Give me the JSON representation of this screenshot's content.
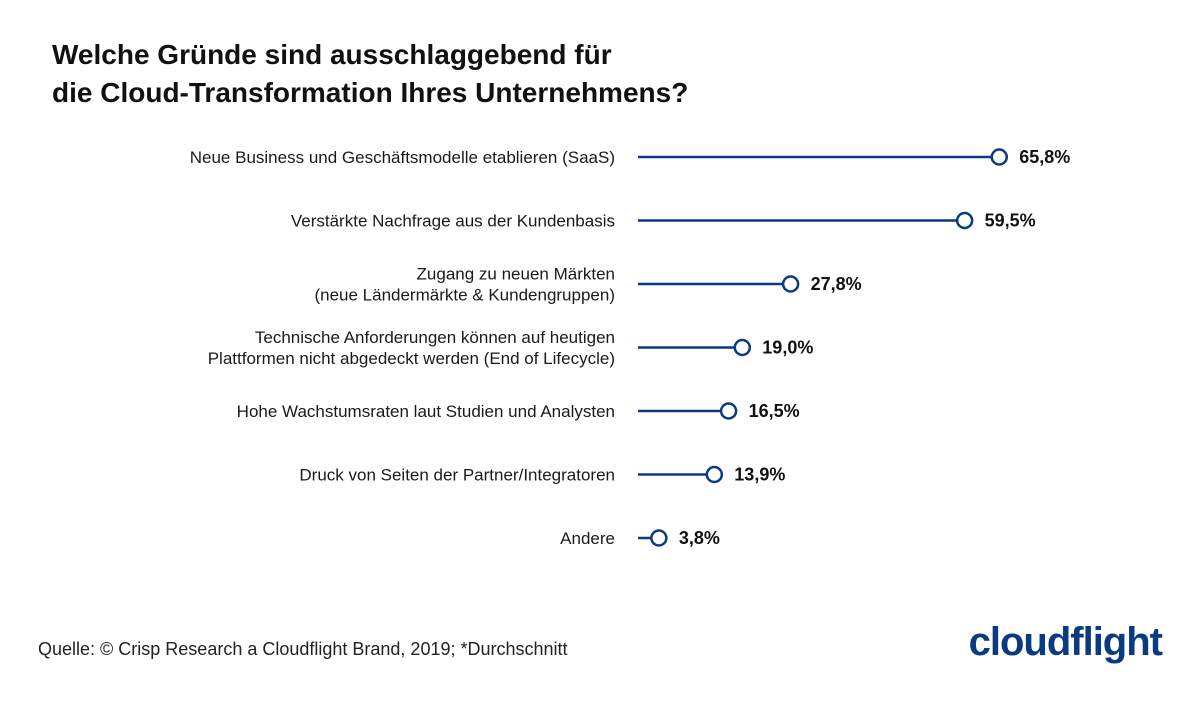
{
  "title": {
    "line1": "Welche Gründe sind ausschlaggebend für",
    "line2": "die Cloud-Transformation Ihres Unternehmens?"
  },
  "source": "Quelle: © Crisp Research a Cloudflight Brand, 2019; *Durchschnitt",
  "logo": "cloudflight",
  "colors": {
    "accent": "#0b3a82",
    "text": "#1a1a1a"
  },
  "chart_data": {
    "type": "lollipop-horizontal",
    "xlim": [
      0,
      70
    ],
    "grid": false,
    "categories": [
      [
        "Neue Business und Geschäftsmodelle etablieren (SaaS)"
      ],
      [
        "Verstärkte Nachfrage aus der Kundenbasis"
      ],
      [
        "Zugang zu neuen Märkten",
        "(neue Ländermärkte & Kundengruppen)"
      ],
      [
        "Technische Anforderungen können auf heutigen",
        "Plattformen nicht abgedeckt werden (End of Lifecycle)"
      ],
      [
        "Hohe Wachstumsraten laut Studien und Analysten"
      ],
      [
        "Druck von Seiten der Partner/Integratoren"
      ],
      [
        "Andere"
      ]
    ],
    "values": [
      65.8,
      59.5,
      27.8,
      19.0,
      16.5,
      13.9,
      3.8
    ],
    "value_labels": [
      "65,8%",
      "59,5%",
      "27,8%",
      "19,0%",
      "16,5%",
      "13,9%",
      "3,8%"
    ]
  }
}
